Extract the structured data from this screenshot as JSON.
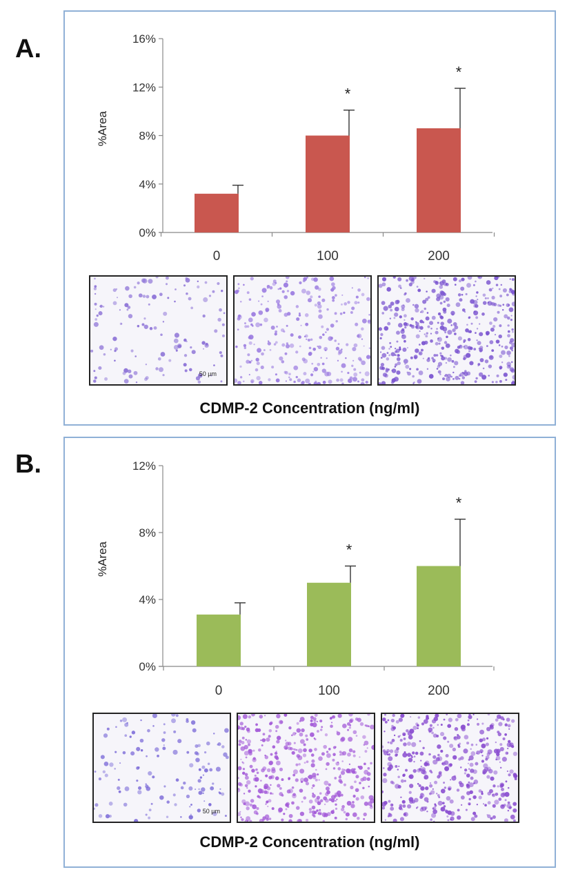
{
  "panels": [
    {
      "label": "A.",
      "xlabel": "CDMP-2 Concentration (ng/ml)",
      "scale_bar": "50 µm",
      "bar_color": "#c9574f",
      "chart_data": {
        "type": "bar",
        "categories": [
          "0",
          "100",
          "200"
        ],
        "values": [
          3.2,
          8.0,
          8.6
        ],
        "errors": [
          0.7,
          2.1,
          3.3
        ],
        "significance": [
          "",
          "*",
          "*"
        ],
        "ylabel": "%Area",
        "ylim": [
          0,
          16
        ],
        "yticks": [
          "0%",
          "4%",
          "8%",
          "12%",
          "16%"
        ],
        "ytick_values": [
          0,
          4,
          8,
          12,
          16
        ]
      },
      "micrographs": [
        {
          "density": "sparse",
          "tone": "#8a6fd6"
        },
        {
          "density": "medium",
          "tone": "#9a7ae0"
        },
        {
          "density": "dense",
          "tone": "#7b55d0"
        }
      ]
    },
    {
      "label": "B.",
      "xlabel": "CDMP-2 Concentration (ng/ml)",
      "scale_bar": "50 µm",
      "bar_color": "#9bbb59",
      "chart_data": {
        "type": "bar",
        "categories": [
          "0",
          "100",
          "200"
        ],
        "values": [
          3.1,
          5.0,
          6.0
        ],
        "errors": [
          0.7,
          1.0,
          2.8
        ],
        "significance": [
          "",
          "*",
          "*"
        ],
        "ylabel": "%Area",
        "ylim": [
          0,
          12
        ],
        "yticks": [
          "0%",
          "4%",
          "8%",
          "12%"
        ],
        "ytick_values": [
          0,
          4,
          8,
          12
        ]
      },
      "micrographs": [
        {
          "density": "sparse",
          "tone": "#7b6ad8"
        },
        {
          "density": "dense",
          "tone": "#a35ad8"
        },
        {
          "density": "dense",
          "tone": "#8a4ed0"
        }
      ]
    }
  ]
}
